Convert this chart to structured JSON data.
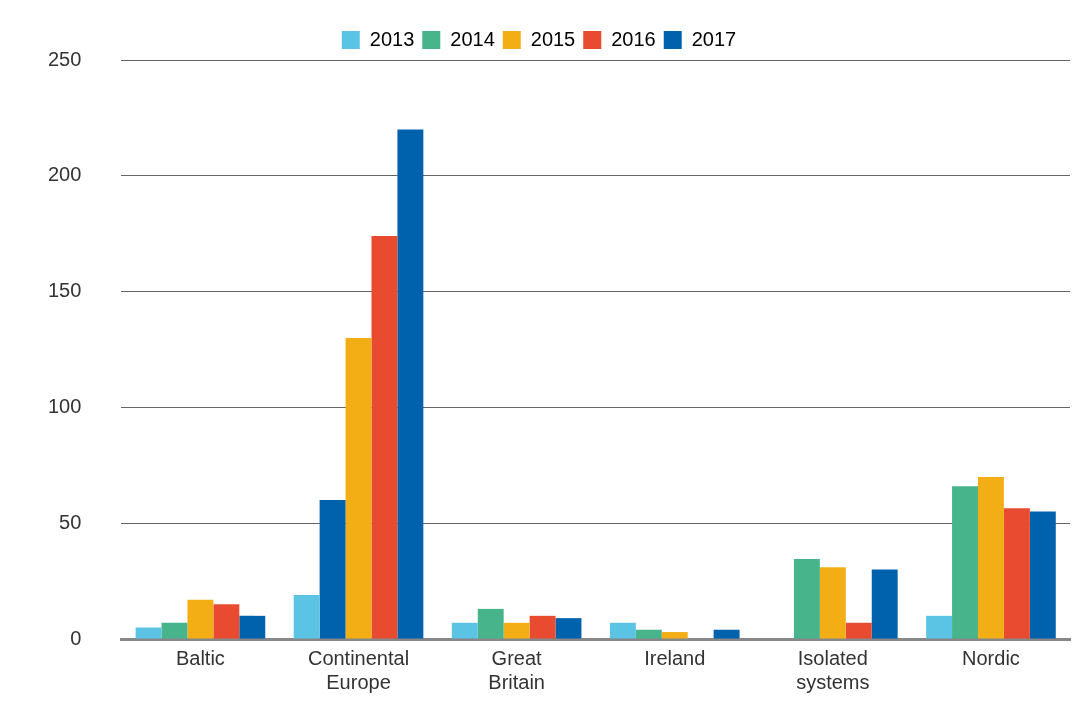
{
  "chart_data": {
    "type": "bar",
    "categories": [
      "Baltic",
      "Continental Europe",
      "Great Britain",
      "Ireland",
      "Isolated systems",
      "Nordic"
    ],
    "series": [
      {
        "name": "2013",
        "color": "#5bc3e4",
        "values": [
          5,
          19,
          7,
          7,
          0,
          10
        ]
      },
      {
        "name": "2014",
        "color": "#48b48c",
        "colors": [
          "#48b48c",
          "#0061ad",
          "#48b48c",
          "#48b48c",
          "#48b48c",
          "#48b48c"
        ],
        "values": [
          7,
          60,
          13,
          4,
          34.5,
          66
        ]
      },
      {
        "name": "2015",
        "color": "#f4ae15",
        "values": [
          17,
          130,
          7,
          3,
          31,
          70
        ]
      },
      {
        "name": "2016",
        "color": "#e84b2f",
        "values": [
          15,
          174,
          10,
          0,
          7,
          56.5
        ]
      },
      {
        "name": "2017",
        "color": "#0061ad",
        "values": [
          10,
          220,
          9,
          4,
          30,
          55
        ]
      }
    ],
    "ylim": [
      0,
      250
    ],
    "yticks": [
      0,
      50,
      100,
      150,
      200,
      250
    ],
    "grid": "y",
    "legend": "top"
  }
}
